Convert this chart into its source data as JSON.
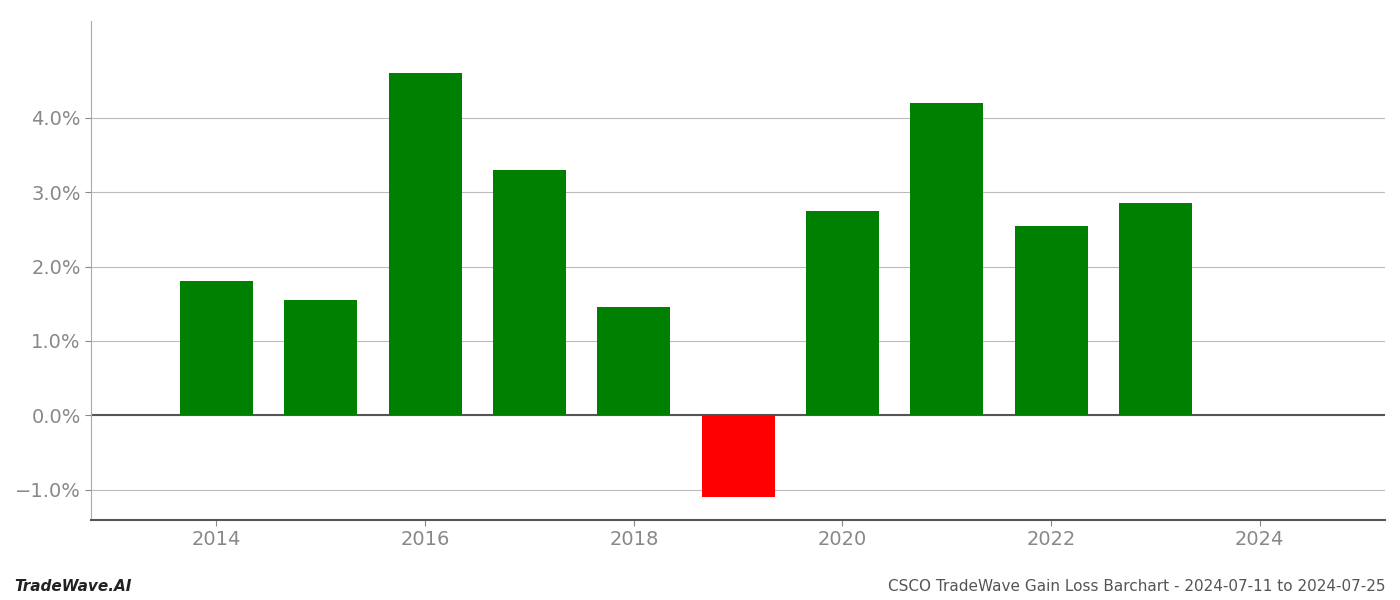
{
  "years": [
    2014,
    2015,
    2016,
    2017,
    2018,
    2019,
    2020,
    2021,
    2022,
    2023
  ],
  "values": [
    0.018,
    0.0155,
    0.046,
    0.033,
    0.0145,
    -0.011,
    0.0275,
    0.042,
    0.0255,
    0.0285
  ],
  "colors": [
    "#008000",
    "#008000",
    "#008000",
    "#008000",
    "#008000",
    "#ff0000",
    "#008000",
    "#008000",
    "#008000",
    "#008000"
  ],
  "bar_width": 0.7,
  "ylim": [
    -0.014,
    0.053
  ],
  "yticks": [
    -0.01,
    0.0,
    0.01,
    0.02,
    0.03,
    0.04
  ],
  "footer_left": "TradeWave.AI",
  "footer_right": "CSCO TradeWave Gain Loss Barchart - 2024-07-11 to 2024-07-25",
  "background_color": "#ffffff",
  "grid_color": "#bbbbbb",
  "tick_color": "#888888",
  "footer_fontsize": 11,
  "tick_fontsize": 14,
  "xlim": [
    2012.8,
    2025.2
  ],
  "xticks": [
    2014,
    2016,
    2018,
    2020,
    2022,
    2024
  ]
}
